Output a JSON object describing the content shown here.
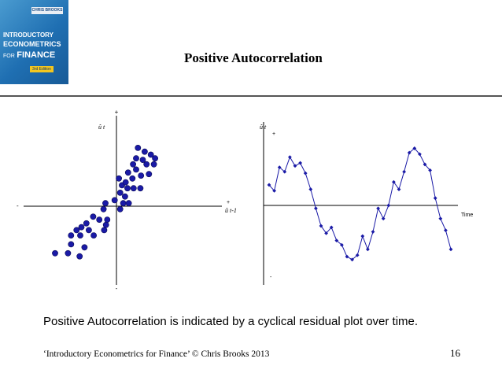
{
  "book_cover": {
    "author": "CHRIS BROOKS",
    "line1": "INTRODUCTORY",
    "line2": "ECONOMETRICS",
    "line3_for": "FOR",
    "line3_finance": "FINANCE",
    "edition": "3rd Edition"
  },
  "slide": {
    "title": "Positive Autocorrelation",
    "caption": "Positive Autocorrelation is indicated by a cyclical residual plot over time.",
    "footer": "‘Introductory Econometrics for Finance’ © Chris Brooks 2013",
    "page_number": "16"
  },
  "chart_data": [
    {
      "type": "scatter",
      "xlabel": "û t-1",
      "ylabel": "û t",
      "x_plus": "+",
      "x_minus": "-",
      "y_plus": "+",
      "y_minus": "-",
      "color": "#1a1aa6",
      "points": [
        [
          -10.0,
          -6.3
        ],
        [
          -7.9,
          -6.3
        ],
        [
          -7.4,
          -5.1
        ],
        [
          -7.4,
          -3.9
        ],
        [
          -5.9,
          -3.9
        ],
        [
          -5.2,
          -5.5
        ],
        [
          -6.0,
          -6.7
        ],
        [
          -6.5,
          -3.2
        ],
        [
          -5.7,
          -2.8
        ],
        [
          -4.5,
          -3.2
        ],
        [
          -3.7,
          -3.9
        ],
        [
          -4.9,
          -2.3
        ],
        [
          -3.8,
          -1.4
        ],
        [
          -2.8,
          -1.8
        ],
        [
          -2.0,
          -3.2
        ],
        [
          -1.5,
          -1.8
        ],
        [
          -2.1,
          -0.4
        ],
        [
          -1.8,
          0.4
        ],
        [
          -0.3,
          0.8
        ],
        [
          0.6,
          -0.4
        ],
        [
          1.1,
          0.4
        ],
        [
          0.6,
          1.8
        ],
        [
          1.4,
          1.3
        ],
        [
          2.0,
          0.4
        ],
        [
          1.8,
          2.4
        ],
        [
          0.9,
          2.8
        ],
        [
          0.4,
          3.7
        ],
        [
          1.5,
          3.2
        ],
        [
          2.6,
          3.7
        ],
        [
          1.9,
          4.5
        ],
        [
          3.2,
          4.9
        ],
        [
          2.7,
          5.6
        ],
        [
          3.2,
          6.4
        ],
        [
          4.3,
          6.2
        ],
        [
          4.9,
          5.6
        ],
        [
          4.0,
          4.1
        ],
        [
          5.3,
          4.3
        ],
        [
          6.1,
          5.6
        ],
        [
          6.3,
          6.4
        ],
        [
          5.6,
          6.9
        ],
        [
          4.6,
          7.3
        ],
        [
          3.5,
          7.8
        ],
        [
          3.9,
          2.4
        ],
        [
          2.8,
          2.4
        ],
        [
          -1.7,
          -2.5
        ]
      ],
      "xlim": [
        -10,
        10
      ],
      "ylim": [
        -10,
        10
      ]
    },
    {
      "type": "line",
      "ylabel": "û t",
      "xlabel": "Time",
      "y_plus": "+",
      "y_minus": "-",
      "color": "#1a1aa6",
      "values": [
        1.4,
        1.0,
        2.6,
        2.3,
        3.3,
        2.7,
        2.9,
        2.2,
        1.1,
        -0.2,
        -1.4,
        -1.9,
        -1.5,
        -2.4,
        -2.7,
        -3.5,
        -3.7,
        -3.4,
        -2.1,
        -3.0,
        -1.8,
        -0.2,
        -0.9,
        0.0,
        1.6,
        1.1,
        2.3,
        3.6,
        3.9,
        3.5,
        2.8,
        2.4,
        0.5,
        -0.9,
        -1.7,
        -3.0
      ]
    }
  ]
}
